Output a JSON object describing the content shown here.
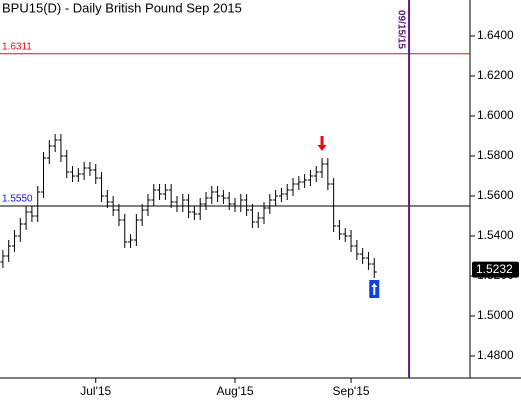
{
  "chart_data": {
    "type": "ohlc",
    "title": "BPU15(D) - Daily  British Pound Sep 2015",
    "categories": [
      null,
      null,
      null,
      null,
      null,
      null,
      null,
      null,
      null,
      null,
      null,
      null,
      null,
      null,
      null,
      null,
      null,
      null,
      null,
      null,
      null,
      null,
      null,
      null,
      null,
      null,
      null,
      null,
      null,
      null,
      null,
      null,
      null,
      null,
      null,
      null,
      null,
      null,
      null,
      null,
      null,
      null,
      null,
      null,
      null,
      null,
      null,
      null,
      null,
      null,
      null,
      null,
      null,
      null,
      null,
      null,
      null,
      null,
      null,
      null,
      null,
      null,
      null,
      null,
      null
    ],
    "open": [
      1.527,
      1.53,
      1.535,
      1.54,
      1.546,
      1.552,
      1.55,
      1.562,
      1.579,
      1.585,
      1.588,
      1.58,
      1.572,
      1.57,
      1.571,
      1.574,
      1.573,
      1.569,
      1.56,
      1.557,
      1.553,
      1.548,
      1.537,
      1.538,
      1.548,
      1.553,
      1.558,
      1.563,
      1.561,
      1.563,
      1.557,
      1.555,
      1.558,
      1.552,
      1.551,
      1.556,
      1.559,
      1.562,
      1.56,
      1.559,
      1.556,
      1.555,
      1.558,
      1.553,
      1.547,
      1.549,
      1.554,
      1.558,
      1.56,
      1.561,
      1.563,
      1.566,
      1.567,
      1.568,
      1.57,
      1.572,
      1.576,
      1.566,
      1.545,
      1.541,
      1.54,
      1.535,
      1.531,
      1.529,
      1.526
    ],
    "high": [
      1.533,
      1.538,
      1.543,
      1.549,
      1.555,
      1.555,
      1.565,
      1.582,
      1.588,
      1.591,
      1.591,
      1.583,
      1.575,
      1.574,
      1.577,
      1.577,
      1.576,
      1.572,
      1.563,
      1.56,
      1.556,
      1.551,
      1.541,
      1.551,
      1.556,
      1.561,
      1.566,
      1.566,
      1.566,
      1.566,
      1.56,
      1.561,
      1.561,
      1.555,
      1.559,
      1.562,
      1.565,
      1.565,
      1.563,
      1.562,
      1.559,
      1.561,
      1.561,
      1.556,
      1.552,
      1.557,
      1.561,
      1.563,
      1.564,
      1.566,
      1.569,
      1.57,
      1.571,
      1.573,
      1.575,
      1.579,
      1.579,
      1.569,
      1.548,
      1.544,
      1.543,
      1.538,
      1.534,
      1.532,
      1.529
    ],
    "low": [
      1.524,
      1.527,
      1.532,
      1.537,
      1.543,
      1.547,
      1.547,
      1.559,
      1.576,
      1.582,
      1.577,
      1.569,
      1.567,
      1.567,
      1.568,
      1.57,
      1.566,
      1.557,
      1.554,
      1.55,
      1.545,
      1.534,
      1.534,
      1.535,
      1.545,
      1.55,
      1.555,
      1.558,
      1.558,
      1.554,
      1.552,
      1.552,
      1.549,
      1.548,
      1.548,
      1.553,
      1.556,
      1.557,
      1.556,
      1.553,
      1.552,
      1.552,
      1.55,
      1.544,
      1.544,
      1.546,
      1.551,
      1.555,
      1.557,
      1.558,
      1.56,
      1.563,
      1.564,
      1.565,
      1.567,
      1.569,
      1.563,
      1.542,
      1.538,
      1.537,
      1.532,
      1.528,
      1.526,
      1.523,
      1.519
    ],
    "close": [
      1.53,
      1.535,
      1.54,
      1.546,
      1.552,
      1.55,
      1.562,
      1.579,
      1.585,
      1.588,
      1.58,
      1.572,
      1.57,
      1.571,
      1.574,
      1.573,
      1.569,
      1.56,
      1.557,
      1.553,
      1.548,
      1.537,
      1.538,
      1.548,
      1.553,
      1.558,
      1.563,
      1.561,
      1.563,
      1.557,
      1.555,
      1.558,
      1.552,
      1.551,
      1.556,
      1.559,
      1.562,
      1.56,
      1.559,
      1.556,
      1.555,
      1.558,
      1.553,
      1.547,
      1.549,
      1.554,
      1.558,
      1.56,
      1.561,
      1.563,
      1.566,
      1.567,
      1.568,
      1.57,
      1.572,
      1.576,
      1.566,
      1.545,
      1.541,
      1.54,
      1.535,
      1.531,
      1.529,
      1.526,
      1.522
    ],
    "color": "#000000",
    "xlim": [
      -0.5,
      80.5
    ],
    "xticks": [
      {
        "value": 16,
        "label": "Jul'15"
      },
      {
        "value": 40,
        "label": "Aug'15"
      },
      {
        "value": 60,
        "label": "Sep'15"
      }
    ],
    "ylim": [
      1.469,
      1.658
    ],
    "yticks": [
      {
        "value": 1.48,
        "label": "1.4800"
      },
      {
        "value": 1.5,
        "label": "1.5000"
      },
      {
        "value": 1.52,
        "label": "1.5200"
      },
      {
        "value": 1.54,
        "label": "1.5400"
      },
      {
        "value": 1.56,
        "label": "1.5600"
      },
      {
        "value": 1.58,
        "label": "1.5800"
      },
      {
        "value": 1.6,
        "label": "1.6000"
      },
      {
        "value": 1.62,
        "label": "1.6200"
      },
      {
        "value": 1.64,
        "label": "1.6400"
      }
    ],
    "hlines": [
      {
        "value": 1.6311,
        "label": "1.6311",
        "color": "#e01010"
      },
      {
        "value": 1.555,
        "label": "1.5550",
        "color": "#1010d0"
      }
    ],
    "vline": {
      "x": 70,
      "label": "09/15/15",
      "color": "#5a1a7a"
    },
    "last_price": {
      "value": 1.5232,
      "label": "1.5232"
    },
    "signals": [
      {
        "index": 55,
        "direction": "down",
        "color": "#e01010"
      },
      {
        "index": 64,
        "direction": "up",
        "color": "#1040e0"
      }
    ]
  }
}
